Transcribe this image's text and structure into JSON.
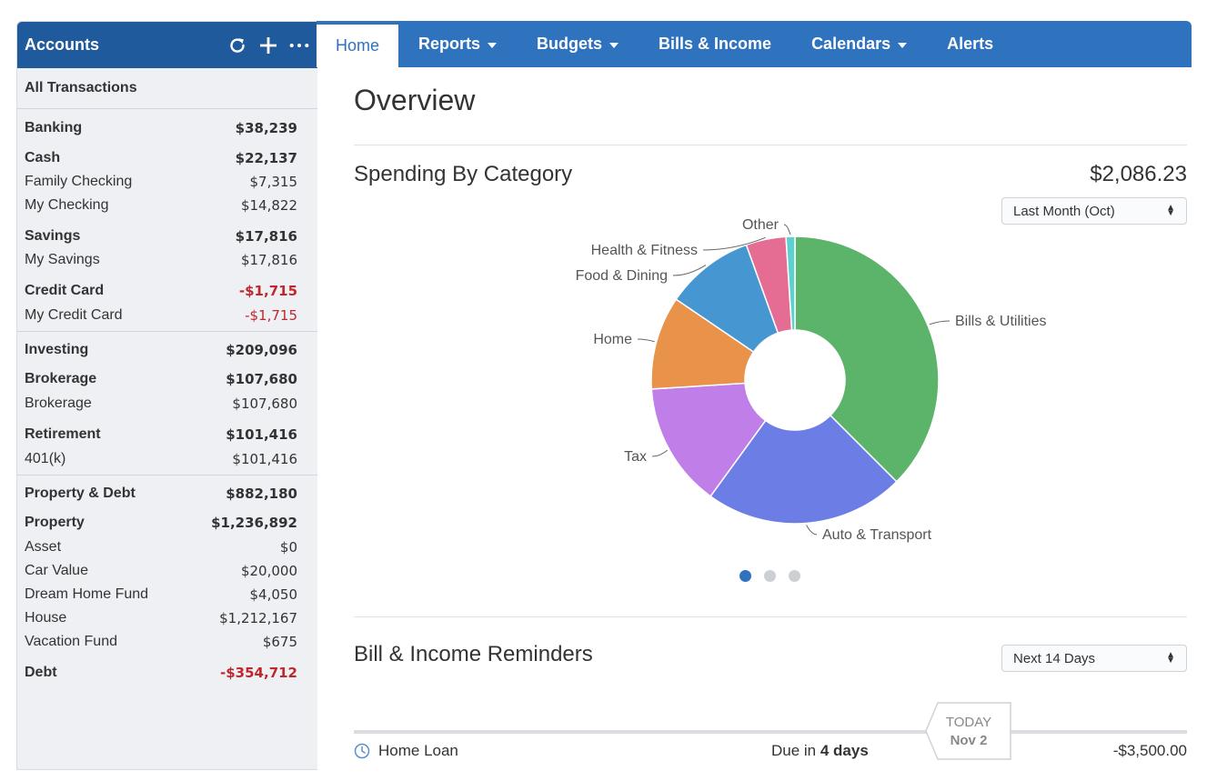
{
  "sidebar": {
    "title": "Accounts",
    "all_transactions": "All Transactions",
    "banking": {
      "label": "Banking",
      "amount": "$38,239"
    },
    "cash": {
      "label": "Cash",
      "amount": "$22,137"
    },
    "family_checking": {
      "label": "Family Checking",
      "amount": "$7,315"
    },
    "my_checking": {
      "label": "My Checking",
      "amount": "$14,822"
    },
    "savings": {
      "label": "Savings",
      "amount": "$17,816"
    },
    "my_savings": {
      "label": "My Savings",
      "amount": "$17,816"
    },
    "credit_card": {
      "label": "Credit Card",
      "amount": "-$1,715"
    },
    "my_credit_card": {
      "label": "My Credit Card",
      "amount": "-$1,715"
    },
    "investing": {
      "label": "Investing",
      "amount": "$209,096"
    },
    "brokerage_group": {
      "label": "Brokerage",
      "amount": "$107,680"
    },
    "brokerage": {
      "label": "Brokerage",
      "amount": "$107,680"
    },
    "retirement": {
      "label": "Retirement",
      "amount": "$101,416"
    },
    "k401": {
      "label": "401(k)",
      "amount": "$101,416"
    },
    "property_debt": {
      "label": "Property & Debt",
      "amount": "$882,180"
    },
    "property": {
      "label": "Property",
      "amount": "$1,236,892"
    },
    "asset": {
      "label": "Asset",
      "amount": "$0"
    },
    "car_value": {
      "label": "Car Value",
      "amount": "$20,000"
    },
    "dream_home": {
      "label": "Dream Home Fund",
      "amount": "$4,050"
    },
    "house": {
      "label": "House",
      "amount": "$1,212,167"
    },
    "vacation": {
      "label": "Vacation Fund",
      "amount": "$675"
    },
    "debt": {
      "label": "Debt",
      "amount": "-$354,712"
    },
    "negative_color": "#c0272d"
  },
  "tabs": {
    "home": "Home",
    "reports": "Reports",
    "budgets": "Budgets",
    "bills": "Bills & Income",
    "calendars": "Calendars",
    "alerts": "Alerts"
  },
  "main": {
    "page_title": "Overview",
    "spending": {
      "title": "Spending By Category",
      "total": "$2,086.23",
      "period": "Last Month (Oct)"
    },
    "reminders": {
      "title": "Bill & Income Reminders",
      "period": "Next 14 Days",
      "today_label": "TODAY",
      "today_date": "Nov 2",
      "item": {
        "name": "Home Loan",
        "due_prefix": "Due in",
        "due_value": "4 days",
        "amount": "-$3,500.00"
      }
    }
  },
  "chart_data": {
    "type": "pie",
    "donut": true,
    "title": "Spending By Category",
    "categories": [
      "Bills & Utilities",
      "Auto & Transport",
      "Tax",
      "Home",
      "Food & Dining",
      "Health & Fitness",
      "Other"
    ],
    "values": [
      37.5,
      22.5,
      14.0,
      10.5,
      10.0,
      4.5,
      1.0
    ],
    "colors": [
      "#5cb36a",
      "#6c7de6",
      "#bf7ee8",
      "#e8924a",
      "#4697d1",
      "#e56d94",
      "#5fd0d0"
    ],
    "start_angle_deg": 0,
    "legend": "none"
  }
}
